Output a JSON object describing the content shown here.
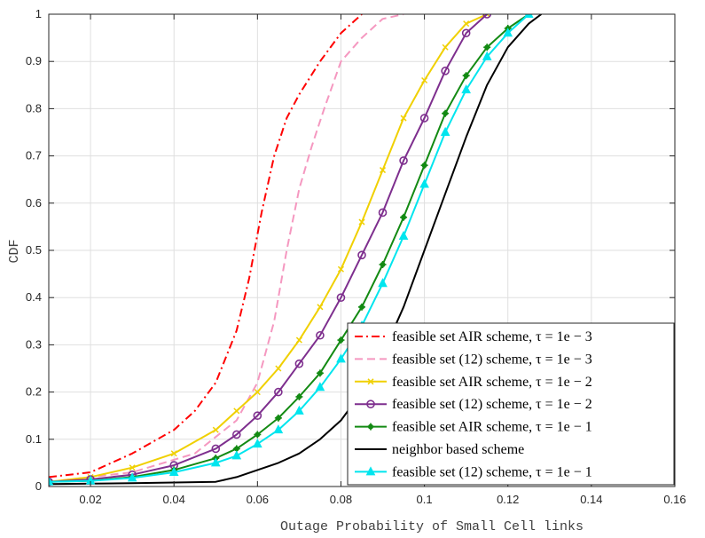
{
  "chart_data": {
    "type": "line",
    "xlabel": "Outage Probability of Small Cell links",
    "ylabel": "CDF",
    "xlim": [
      0.01,
      0.16
    ],
    "ylim": [
      0,
      1
    ],
    "xticks": [
      0.02,
      0.04,
      0.06,
      0.08,
      0.1,
      0.12,
      0.14,
      0.16
    ],
    "xtick_labels": [
      "0.02",
      "0.04",
      "0.06",
      "0.08",
      "0.1",
      "0.12",
      "0.14",
      "0.16"
    ],
    "yticks": [
      0,
      0.1,
      0.2,
      0.3,
      0.4,
      0.5,
      0.6,
      0.7,
      0.8,
      0.9,
      1
    ],
    "ytick_labels": [
      "0",
      "0.1",
      "0.2",
      "0.3",
      "0.4",
      "0.5",
      "0.6",
      "0.7",
      "0.8",
      "0.9",
      "1"
    ],
    "grid": true,
    "legend_position": "bottom-right",
    "series": [
      {
        "name": "feasible set AIR scheme, τ = 1e − 3",
        "color": "#ff0000",
        "dash": "dashdot",
        "marker": "none",
        "x": [
          0.01,
          0.02,
          0.03,
          0.04,
          0.045,
          0.05,
          0.055,
          0.058,
          0.061,
          0.064,
          0.067,
          0.07,
          0.075,
          0.08,
          0.085
        ],
        "y": [
          0.02,
          0.03,
          0.07,
          0.12,
          0.16,
          0.22,
          0.33,
          0.44,
          0.58,
          0.7,
          0.78,
          0.83,
          0.9,
          0.96,
          1.0
        ]
      },
      {
        "name": "feasible set (12) scheme, τ = 1e − 3",
        "color": "#f598c0",
        "dash": "dashed",
        "marker": "none",
        "x": [
          0.01,
          0.03,
          0.045,
          0.055,
          0.06,
          0.064,
          0.067,
          0.07,
          0.073,
          0.076,
          0.08,
          0.085,
          0.09,
          0.095
        ],
        "y": [
          0.01,
          0.03,
          0.07,
          0.14,
          0.22,
          0.35,
          0.5,
          0.63,
          0.72,
          0.8,
          0.9,
          0.95,
          0.99,
          1.0
        ]
      },
      {
        "name": "feasible set AIR scheme, τ = 1e − 2",
        "color": "#f0d000",
        "dash": "solid",
        "marker": "x",
        "x": [
          0.01,
          0.02,
          0.03,
          0.04,
          0.05,
          0.055,
          0.06,
          0.065,
          0.07,
          0.075,
          0.08,
          0.085,
          0.09,
          0.095,
          0.1,
          0.105,
          0.11,
          0.115
        ],
        "y": [
          0.01,
          0.02,
          0.04,
          0.07,
          0.12,
          0.16,
          0.2,
          0.25,
          0.31,
          0.38,
          0.46,
          0.56,
          0.67,
          0.78,
          0.86,
          0.93,
          0.98,
          1.0
        ]
      },
      {
        "name": "feasible set (12) scheme, τ = 1e − 2",
        "color": "#7e2f8e",
        "dash": "solid",
        "marker": "o",
        "x": [
          0.01,
          0.02,
          0.03,
          0.04,
          0.05,
          0.055,
          0.06,
          0.065,
          0.07,
          0.075,
          0.08,
          0.085,
          0.09,
          0.095,
          0.1,
          0.105,
          0.11,
          0.115
        ],
        "y": [
          0.01,
          0.015,
          0.025,
          0.045,
          0.08,
          0.11,
          0.15,
          0.2,
          0.26,
          0.32,
          0.4,
          0.49,
          0.58,
          0.69,
          0.78,
          0.88,
          0.96,
          1.0
        ]
      },
      {
        "name": "feasible set AIR scheme, τ = 1e − 1",
        "color": "#138a13",
        "dash": "solid",
        "marker": "*",
        "x": [
          0.01,
          0.02,
          0.03,
          0.04,
          0.05,
          0.055,
          0.06,
          0.065,
          0.07,
          0.075,
          0.08,
          0.085,
          0.09,
          0.095,
          0.1,
          0.105,
          0.11,
          0.115,
          0.12,
          0.125
        ],
        "y": [
          0.01,
          0.012,
          0.02,
          0.035,
          0.06,
          0.08,
          0.11,
          0.145,
          0.19,
          0.24,
          0.31,
          0.38,
          0.47,
          0.57,
          0.68,
          0.79,
          0.87,
          0.93,
          0.97,
          1.0
        ]
      },
      {
        "name": "neighbor based scheme",
        "color": "#000000",
        "dash": "solid",
        "marker": "none",
        "x": [
          0.01,
          0.03,
          0.05,
          0.055,
          0.06,
          0.065,
          0.07,
          0.075,
          0.08,
          0.085,
          0.09,
          0.095,
          0.1,
          0.105,
          0.11,
          0.115,
          0.12,
          0.125,
          0.128
        ],
        "y": [
          0.005,
          0.007,
          0.01,
          0.02,
          0.035,
          0.05,
          0.07,
          0.1,
          0.14,
          0.2,
          0.28,
          0.38,
          0.5,
          0.62,
          0.74,
          0.85,
          0.93,
          0.98,
          1.0
        ]
      },
      {
        "name": "feasible set (12) scheme, τ = 1e − 1",
        "color": "#00e5ee",
        "dash": "solid",
        "marker": "^",
        "x": [
          0.01,
          0.02,
          0.03,
          0.04,
          0.05,
          0.055,
          0.06,
          0.065,
          0.07,
          0.075,
          0.08,
          0.085,
          0.09,
          0.095,
          0.1,
          0.105,
          0.11,
          0.115,
          0.12,
          0.125
        ],
        "y": [
          0.01,
          0.012,
          0.018,
          0.03,
          0.05,
          0.065,
          0.09,
          0.12,
          0.16,
          0.21,
          0.27,
          0.34,
          0.43,
          0.53,
          0.64,
          0.75,
          0.84,
          0.91,
          0.96,
          1.0
        ]
      }
    ]
  }
}
